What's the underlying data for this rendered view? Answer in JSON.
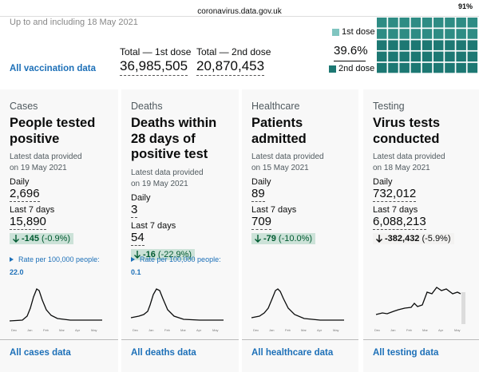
{
  "status_bar": {
    "url": "coronavirus.data.gov.uk",
    "battery": "91%"
  },
  "vaccinations": {
    "period": "Up to and including 18 May 2021",
    "first_dose_label": "Total — 1st dose",
    "first_dose_value": "36,985,505",
    "second_dose_label": "Total — 2nd dose",
    "second_dose_value": "20,870,453",
    "link": "All vaccination data",
    "legend_first": "1st dose",
    "percent": "39.6%",
    "legend_second": "2nd dose"
  },
  "cards": [
    {
      "category": "Cases",
      "title": "People tested positive",
      "date_label": "Latest data provided",
      "date": "on 19 May 2021",
      "daily_label": "Daily",
      "daily": "2,696",
      "week_label": "Last 7 days",
      "week": "15,890",
      "change": "-145",
      "change_pct": "(-0.9%)",
      "rate_label": "Rate per 100,000 people:",
      "rate": "22.0",
      "link": "All cases data",
      "months": [
        "Dec",
        "Jan",
        "Feb",
        "Mar",
        "Apr",
        "May"
      ]
    },
    {
      "category": "Deaths",
      "title": "Deaths within 28 days of positive test",
      "date_label": "Latest data provided",
      "date": "on 19 May 2021",
      "daily_label": "Daily",
      "daily": "3",
      "week_label": "Last 7 days",
      "week": "54",
      "change": "-16",
      "change_pct": "(-22.9%)",
      "rate_label": "Rate per 100,000 people:",
      "rate": "0.1",
      "link": "All deaths data",
      "months": [
        "Dec",
        "Jan",
        "Feb",
        "Mar",
        "Apr",
        "May"
      ]
    },
    {
      "category": "Healthcare",
      "title": "Patients admitted",
      "date_label": "Latest data provided",
      "date": "on 15 May 2021",
      "daily_label": "Daily",
      "daily": "89",
      "week_label": "Last 7 days",
      "week": "709",
      "change": "-79",
      "change_pct": "(-10.0%)",
      "link": "All healthcare data",
      "months": [
        "Dec",
        "Jan",
        "Feb",
        "Mar",
        "Apr",
        "May"
      ]
    },
    {
      "category": "Testing",
      "title": "Virus tests conducted",
      "date_label": "Latest data provided",
      "date": "on 18 May 2021",
      "daily_label": "Daily",
      "daily": "732,012",
      "week_label": "Last 7 days",
      "week": "6,088,213",
      "change": "-382,432",
      "change_pct": "(-5.9%)",
      "link": "All testing data",
      "months": [
        "Dec",
        "Jan",
        "Feb",
        "Mar",
        "Apr",
        "May"
      ]
    }
  ]
}
